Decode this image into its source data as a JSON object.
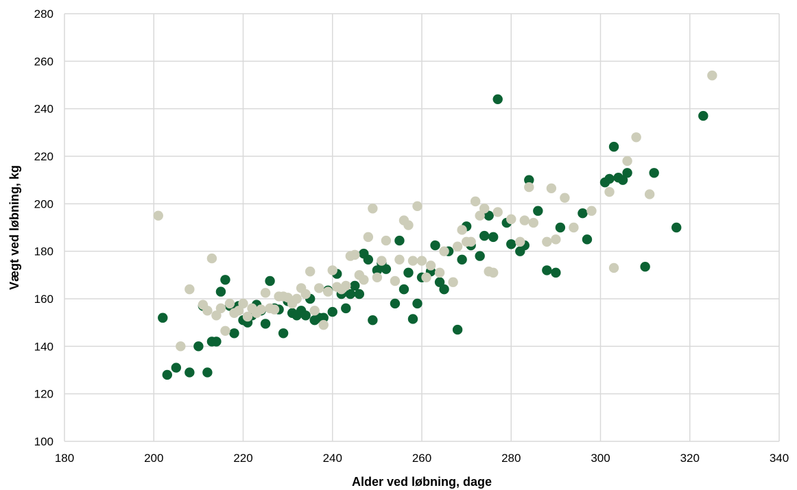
{
  "chart_data": {
    "type": "scatter",
    "xlabel": "Alder ved løbning, dage",
    "ylabel": "Vægt ved løbning, kg",
    "xlim": [
      180,
      340
    ],
    "ylim": [
      100,
      280
    ],
    "xticks": [
      180,
      200,
      220,
      240,
      260,
      280,
      300,
      320,
      340
    ],
    "yticks": [
      100,
      120,
      140,
      160,
      180,
      200,
      220,
      240,
      260,
      280
    ],
    "grid": true,
    "legend": "none",
    "series": [
      {
        "color": "#0b6233",
        "points": [
          [
            202,
            152
          ],
          [
            203,
            128
          ],
          [
            205,
            131
          ],
          [
            208,
            129
          ],
          [
            210,
            140
          ],
          [
            211,
            157
          ],
          [
            212,
            129
          ],
          [
            213,
            142
          ],
          [
            214,
            142
          ],
          [
            215,
            163
          ],
          [
            216,
            168
          ],
          [
            217,
            157
          ],
          [
            218,
            145.5
          ],
          [
            219,
            157
          ],
          [
            220,
            151
          ],
          [
            221,
            150
          ],
          [
            222,
            153
          ],
          [
            223,
            157.5
          ],
          [
            224,
            155
          ],
          [
            225,
            149.5
          ],
          [
            226,
            167.5
          ],
          [
            227,
            156
          ],
          [
            228,
            155.5
          ],
          [
            229,
            145.5
          ],
          [
            230,
            159
          ],
          [
            231,
            154
          ],
          [
            232,
            153
          ],
          [
            233,
            155
          ],
          [
            234,
            153
          ],
          [
            235,
            160
          ],
          [
            236,
            151
          ],
          [
            237,
            152
          ],
          [
            238,
            152
          ],
          [
            239,
            163.5
          ],
          [
            240,
            154.5
          ],
          [
            241,
            170.5
          ],
          [
            242,
            162
          ],
          [
            243,
            156
          ],
          [
            244,
            162
          ],
          [
            245,
            165.5
          ],
          [
            246,
            162
          ],
          [
            247,
            179
          ],
          [
            248,
            176.5
          ],
          [
            249,
            151
          ],
          [
            250,
            172
          ],
          [
            251,
            175
          ],
          [
            252,
            172.5
          ],
          [
            254,
            158
          ],
          [
            255,
            184.5
          ],
          [
            256,
            164
          ],
          [
            257,
            171
          ],
          [
            258,
            151.5
          ],
          [
            259,
            158
          ],
          [
            260,
            169
          ],
          [
            262,
            171.5
          ],
          [
            263,
            182.5
          ],
          [
            264,
            167
          ],
          [
            265,
            164
          ],
          [
            266,
            180
          ],
          [
            268,
            147
          ],
          [
            269,
            176.5
          ],
          [
            270,
            190.5
          ],
          [
            271,
            182.5
          ],
          [
            273,
            178
          ],
          [
            274,
            186.5
          ],
          [
            275,
            195
          ],
          [
            276,
            186
          ],
          [
            277,
            244
          ],
          [
            279,
            192
          ],
          [
            280,
            183
          ],
          [
            282,
            180
          ],
          [
            283,
            182.5
          ],
          [
            284,
            210
          ],
          [
            286,
            197
          ],
          [
            288,
            172
          ],
          [
            290,
            171
          ],
          [
            291,
            190
          ],
          [
            296,
            196
          ],
          [
            297,
            185
          ],
          [
            301,
            209
          ],
          [
            302,
            210.5
          ],
          [
            303,
            224
          ],
          [
            304,
            211
          ],
          [
            305,
            210
          ],
          [
            306,
            213
          ],
          [
            310,
            173.5
          ],
          [
            312,
            213
          ],
          [
            317,
            190
          ],
          [
            323,
            237
          ]
        ]
      },
      {
        "color": "#cdcdb9",
        "points": [
          [
            201,
            195
          ],
          [
            206,
            140
          ],
          [
            208,
            164
          ],
          [
            211,
            157.5
          ],
          [
            212,
            155
          ],
          [
            213,
            177
          ],
          [
            214,
            153
          ],
          [
            215,
            156
          ],
          [
            216,
            146.5
          ],
          [
            217,
            158
          ],
          [
            218,
            154
          ],
          [
            219,
            155
          ],
          [
            220,
            158
          ],
          [
            221,
            152.5
          ],
          [
            222,
            156
          ],
          [
            223,
            154
          ],
          [
            224,
            155.5
          ],
          [
            225,
            162.5
          ],
          [
            226,
            156
          ],
          [
            227,
            155.5
          ],
          [
            228,
            161
          ],
          [
            229,
            161
          ],
          [
            230,
            160.5
          ],
          [
            231,
            158
          ],
          [
            232,
            160
          ],
          [
            233,
            164.5
          ],
          [
            234,
            162
          ],
          [
            235,
            171.5
          ],
          [
            236,
            155
          ],
          [
            237,
            164.5
          ],
          [
            238,
            149
          ],
          [
            239,
            163
          ],
          [
            240,
            172
          ],
          [
            241,
            165
          ],
          [
            242,
            164
          ],
          [
            243,
            165.5
          ],
          [
            244,
            178
          ],
          [
            245,
            178.5
          ],
          [
            246,
            170
          ],
          [
            247,
            168
          ],
          [
            248,
            186
          ],
          [
            249,
            198
          ],
          [
            250,
            169
          ],
          [
            251,
            176
          ],
          [
            252,
            184.5
          ],
          [
            254,
            167.5
          ],
          [
            255,
            176.5
          ],
          [
            256,
            193
          ],
          [
            257,
            191
          ],
          [
            258,
            176
          ],
          [
            259,
            199
          ],
          [
            260,
            176
          ],
          [
            261,
            169
          ],
          [
            262,
            174
          ],
          [
            264,
            171
          ],
          [
            265,
            180
          ],
          [
            267,
            167
          ],
          [
            268,
            182
          ],
          [
            269,
            189
          ],
          [
            270,
            184
          ],
          [
            271,
            184
          ],
          [
            272,
            201
          ],
          [
            273,
            195
          ],
          [
            274,
            198
          ],
          [
            275,
            171.5
          ],
          [
            276,
            171
          ],
          [
            277,
            196.5
          ],
          [
            280,
            193.5
          ],
          [
            282,
            184
          ],
          [
            283,
            193
          ],
          [
            284,
            207
          ],
          [
            285,
            192
          ],
          [
            288,
            184
          ],
          [
            289,
            206.5
          ],
          [
            290,
            185
          ],
          [
            292,
            202.5
          ],
          [
            294,
            190
          ],
          [
            298,
            197
          ],
          [
            302,
            205
          ],
          [
            303,
            173
          ],
          [
            306,
            218
          ],
          [
            308,
            228
          ],
          [
            311,
            204
          ],
          [
            325,
            254
          ]
        ]
      }
    ]
  }
}
